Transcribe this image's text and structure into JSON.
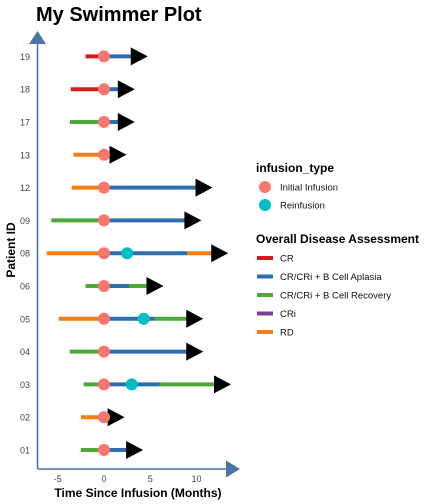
{
  "chart_data": {
    "type": "swimmer",
    "title": "My Swimmer Plot",
    "xlabel": "Time Since Infusion (Months)",
    "ylabel": "Patient ID",
    "xlim": [
      -7,
      13.5
    ],
    "xticks": [
      -5,
      0,
      5,
      10
    ],
    "patients": [
      "01",
      "02",
      "03",
      "04",
      "05",
      "06",
      "08",
      "09",
      "12",
      "13",
      "17",
      "18",
      "19"
    ],
    "segments": [
      {
        "patient": "01",
        "status": "CR/CRi + B Cell Recovery",
        "start": -2.5,
        "end": 0
      },
      {
        "patient": "01",
        "status": "CR/CRi + B Cell Aplasia",
        "start": 0,
        "end": 2.5
      },
      {
        "patient": "02",
        "status": "RD",
        "start": -2.5,
        "end": 0.5
      },
      {
        "patient": "03",
        "status": "CR/CRi + B Cell Recovery",
        "start": -2.2,
        "end": 0
      },
      {
        "patient": "03",
        "status": "CR/CRi + B Cell Aplasia",
        "start": 0,
        "end": 6
      },
      {
        "patient": "03",
        "status": "CR/CRi + B Cell Recovery",
        "start": 6,
        "end": 12
      },
      {
        "patient": "04",
        "status": "CR/CRi + B Cell Recovery",
        "start": -3.7,
        "end": 0
      },
      {
        "patient": "04",
        "status": "CR/CRi + B Cell Aplasia",
        "start": 0,
        "end": 9
      },
      {
        "patient": "05",
        "status": "RD",
        "start": -4.9,
        "end": 0
      },
      {
        "patient": "05",
        "status": "CR/CRi + B Cell Aplasia",
        "start": 0,
        "end": 5.5
      },
      {
        "patient": "05",
        "status": "CR/CRi + B Cell Recovery",
        "start": 5.5,
        "end": 9
      },
      {
        "patient": "06",
        "status": "CR/CRi + B Cell Recovery",
        "start": -2,
        "end": 0
      },
      {
        "patient": "06",
        "status": "CR/CRi + B Cell Aplasia",
        "start": 0,
        "end": 2.7
      },
      {
        "patient": "06",
        "status": "CR/CRi + B Cell Recovery",
        "start": 2.7,
        "end": 4.7
      },
      {
        "patient": "08",
        "status": "RD",
        "start": -6.2,
        "end": 0
      },
      {
        "patient": "08",
        "status": "CR/CRi + B Cell Aplasia",
        "start": 0,
        "end": 9
      },
      {
        "patient": "08",
        "status": "RD",
        "start": 9,
        "end": 11.7
      },
      {
        "patient": "09",
        "status": "CR/CRi + B Cell Recovery",
        "start": -5.7,
        "end": 0
      },
      {
        "patient": "09",
        "status": "CR/CRi + B Cell Aplasia",
        "start": 0,
        "end": 8.8
      },
      {
        "patient": "12",
        "status": "RD",
        "start": -3.5,
        "end": 0
      },
      {
        "patient": "12",
        "status": "CR/CRi + B Cell Aplasia",
        "start": 0,
        "end": 10
      },
      {
        "patient": "13",
        "status": "RD",
        "start": -3.3,
        "end": 0.7
      },
      {
        "patient": "17",
        "status": "CR/CRi + B Cell Recovery",
        "start": -3.7,
        "end": 0
      },
      {
        "patient": "17",
        "status": "CR/CRi + B Cell Aplasia",
        "start": 0,
        "end": 1.6
      },
      {
        "patient": "18",
        "status": "CR",
        "start": -3.6,
        "end": 0
      },
      {
        "patient": "18",
        "status": "CR/CRi + B Cell Aplasia",
        "start": 0,
        "end": 1.6
      },
      {
        "patient": "19",
        "status": "CR",
        "start": -2,
        "end": 0
      },
      {
        "patient": "19",
        "status": "CR/CRi + B Cell Aplasia",
        "start": 0,
        "end": 3
      }
    ],
    "infusions": [
      {
        "patient": "01",
        "type": "Initial Infusion",
        "time": 0
      },
      {
        "patient": "02",
        "type": "Initial Infusion",
        "time": 0
      },
      {
        "patient": "03",
        "type": "Initial Infusion",
        "time": 0
      },
      {
        "patient": "03",
        "type": "Reinfusion",
        "time": 3
      },
      {
        "patient": "04",
        "type": "Initial Infusion",
        "time": 0
      },
      {
        "patient": "05",
        "type": "Initial Infusion",
        "time": 0
      },
      {
        "patient": "05",
        "type": "Reinfusion",
        "time": 4.3
      },
      {
        "patient": "06",
        "type": "Initial Infusion",
        "time": 0
      },
      {
        "patient": "08",
        "type": "Initial Infusion",
        "time": 0
      },
      {
        "patient": "08",
        "type": "Reinfusion",
        "time": 2.5
      },
      {
        "patient": "09",
        "type": "Initial Infusion",
        "time": 0
      },
      {
        "patient": "12",
        "type": "Initial Infusion",
        "time": 0
      },
      {
        "patient": "13",
        "type": "Initial Infusion",
        "time": 0
      },
      {
        "patient": "17",
        "type": "Initial Infusion",
        "time": 0
      },
      {
        "patient": "18",
        "type": "Initial Infusion",
        "time": 0
      },
      {
        "patient": "19",
        "type": "Initial Infusion",
        "time": 0
      }
    ],
    "continuing_arrows": [
      {
        "patient": "01",
        "time": 2.5
      },
      {
        "patient": "02",
        "time": 0.5
      },
      {
        "patient": "03",
        "time": 12
      },
      {
        "patient": "04",
        "time": 9
      },
      {
        "patient": "05",
        "time": 9
      },
      {
        "patient": "06",
        "time": 4.7
      },
      {
        "patient": "08",
        "time": 11.7
      },
      {
        "patient": "09",
        "time": 8.8
      },
      {
        "patient": "12",
        "time": 10
      },
      {
        "patient": "13",
        "time": 0.7
      },
      {
        "patient": "17",
        "time": 1.6
      },
      {
        "patient": "18",
        "time": 1.6
      },
      {
        "patient": "19",
        "time": 3
      }
    ],
    "legends": [
      {
        "title": "infusion_type",
        "kind": "point",
        "items": [
          {
            "label": "Initial Infusion",
            "color": "#F8766D"
          },
          {
            "label": "Reinfusion",
            "color": "#00BFC4"
          }
        ]
      },
      {
        "title": "Overall Disease Assessment",
        "kind": "line",
        "items": [
          {
            "label": "CR",
            "color": "#D7191C"
          },
          {
            "label": "CR/CRi + B Cell Aplasia",
            "color": "#2C6FAC"
          },
          {
            "label": "CR/CRi + B Cell Recovery",
            "color": "#4DAA3A"
          },
          {
            "label": "CRi",
            "color": "#7B3F98"
          },
          {
            "label": "RD",
            "color": "#F07F12"
          }
        ]
      }
    ],
    "legend_position": "right",
    "axis_color": "#4A74A8",
    "arrow_color": "#000000",
    "grid": false
  }
}
